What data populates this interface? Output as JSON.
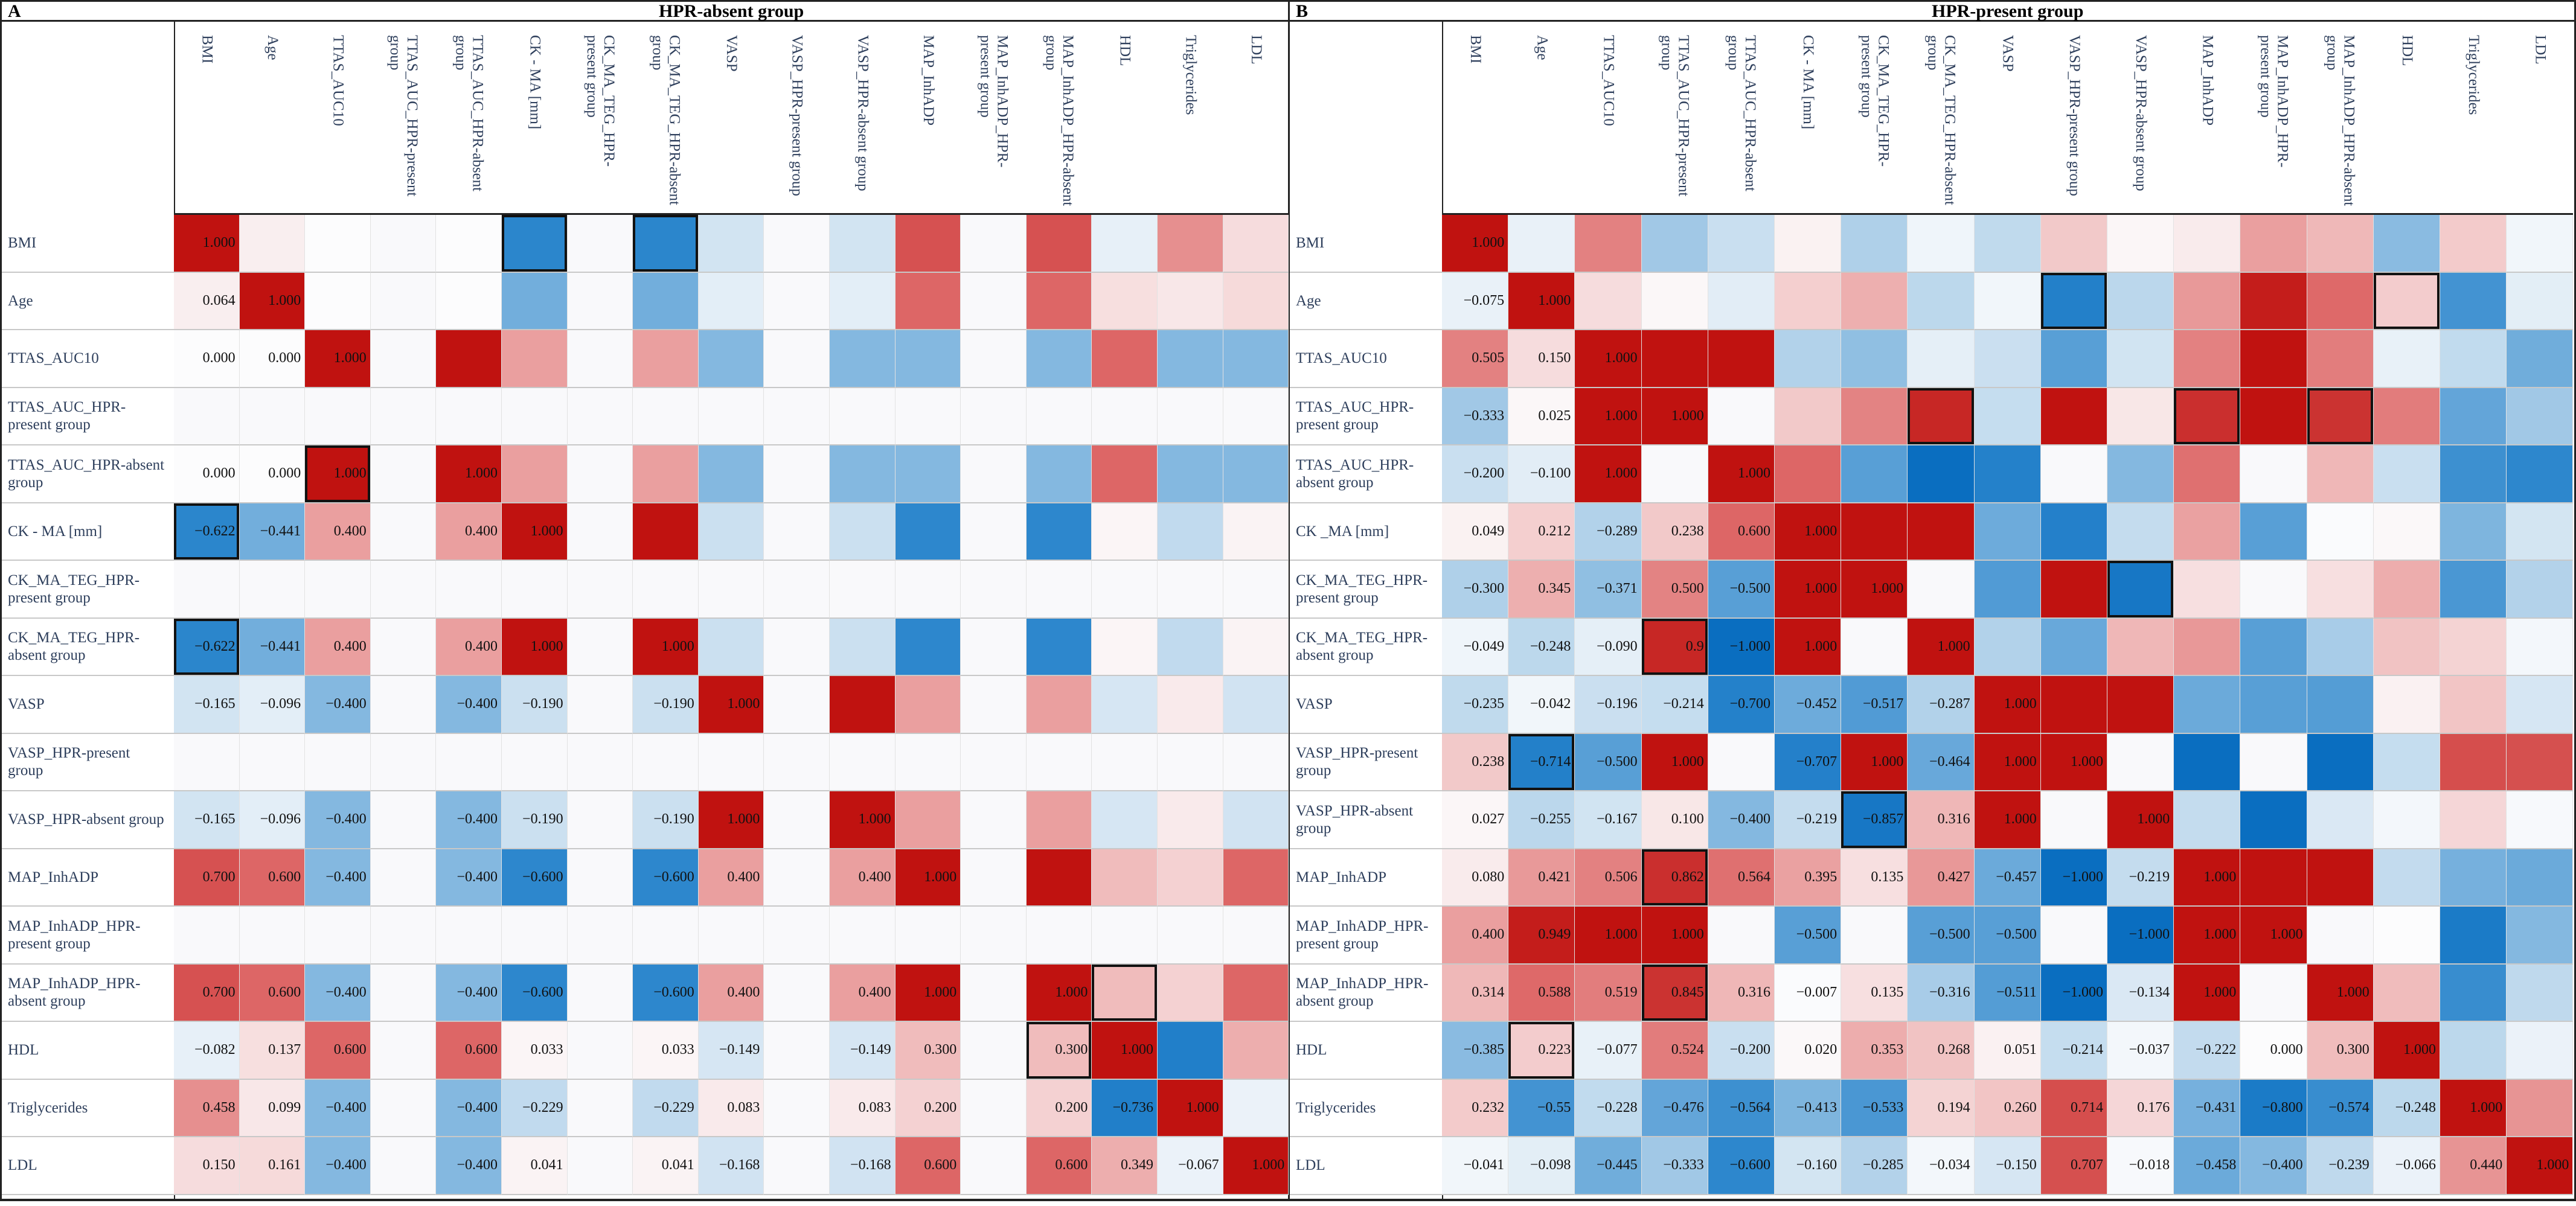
{
  "chart_data": [
    {
      "type": "heatmap",
      "panel": "A",
      "title": "HPR-absent group",
      "value_range": [
        -1,
        1
      ],
      "colormap": {
        "negative": "#0a6ec0",
        "zero": "#ffffff",
        "positive": "#c0120f",
        "missing": "#f9f9fb"
      },
      "col_labels": [
        "BMI",
        "Age",
        "TTAS_AUC10",
        "TTAS_AUC_HPR-present group",
        "TTAS_AUC_HPR-absent group",
        "CK - MA [mm]",
        "CK_MA_TEG_HPR-present group",
        "CK_MA_TEG_HPR-absent group",
        "VASP",
        "VASP_HPR-present group",
        "VASP_HPR-absent group",
        "MAP_InhADP",
        "MAP_InhADP_HPR-present group",
        "MAP_InhADP_HPR-absent group",
        "HDL",
        "Triglycerides",
        "LDL"
      ],
      "row_labels": [
        "BMI",
        "Age",
        "TTAS_AUC10",
        "TTAS_AUC_HPR-present group",
        "TTAS_AUC_HPR-absent group",
        "CK - MA [mm]",
        "CK_MA_TEG_HPR-present group",
        "CK_MA_TEG_HPR-absent group",
        "VASP",
        "VASP_HPR-present group",
        "VASP_HPR-absent group",
        "MAP_InhADP",
        "MAP_InhADP_HPR-present group",
        "MAP_InhADP_HPR-absent group",
        "HDL",
        "Triglycerides",
        "LDL"
      ],
      "values": [
        [
          "1.000"
        ],
        [
          "0.064",
          "1.000"
        ],
        [
          "0.000",
          "0.000",
          "1.000"
        ],
        [
          null,
          null,
          null,
          null
        ],
        [
          "0.000",
          "0.000",
          "1.000",
          null,
          "1.000"
        ],
        [
          "-0.622",
          "-0.441",
          "0.400",
          null,
          "0.400",
          "1.000"
        ],
        [
          null,
          null,
          null,
          null,
          null,
          null,
          null
        ],
        [
          "-0.622",
          "-0.441",
          "0.400",
          null,
          "0.400",
          "1.000",
          null,
          "1.000"
        ],
        [
          "-0.165",
          "-0.096",
          "-0.400",
          null,
          "-0.400",
          "-0.190",
          null,
          "-0.190",
          "1.000"
        ],
        [
          null,
          null,
          null,
          null,
          null,
          null,
          null,
          null,
          null,
          null
        ],
        [
          "-0.165",
          "-0.096",
          "-0.400",
          null,
          "-0.400",
          "-0.190",
          null,
          "-0.190",
          "1.000",
          null,
          "1.000"
        ],
        [
          "0.700",
          "0.600",
          "-0.400",
          null,
          "-0.400",
          "-0.600",
          null,
          "-0.600",
          "0.400",
          null,
          "0.400",
          "1.000"
        ],
        [
          null,
          null,
          null,
          null,
          null,
          null,
          null,
          null,
          null,
          null,
          null,
          null,
          null
        ],
        [
          "0.700",
          "0.600",
          "-0.400",
          null,
          "-0.400",
          "-0.600",
          null,
          "-0.600",
          "0.400",
          null,
          "0.400",
          "1.000",
          null,
          "1.000"
        ],
        [
          "-0.082",
          "0.137",
          "0.600",
          null,
          "0.600",
          "0.033",
          null,
          "0.033",
          "-0.149",
          null,
          "-0.149",
          "0.300",
          null,
          "0.300",
          "1.000"
        ],
        [
          "0.458",
          "0.099",
          "-0.400",
          null,
          "-0.400",
          "-0.229",
          null,
          "-0.229",
          "0.083",
          null,
          "0.083",
          "0.200",
          null,
          "0.200",
          "-0.736",
          "1.000"
        ],
        [
          "0.150",
          "0.161",
          "-0.400",
          null,
          "-0.400",
          "0.041",
          null,
          "0.041",
          "-0.168",
          null,
          "-0.168",
          "0.600",
          null,
          "0.600",
          "0.349",
          "-0.067",
          "1.000"
        ]
      ],
      "highlighted_cells": [
        [
          0,
          5
        ],
        [
          0,
          7
        ],
        [
          5,
          0
        ],
        [
          7,
          0
        ],
        [
          4,
          2
        ],
        [
          13,
          14
        ],
        [
          14,
          13
        ]
      ]
    },
    {
      "type": "heatmap",
      "panel": "B",
      "title": "HPR-present group",
      "value_range": [
        -1,
        1
      ],
      "colormap": {
        "negative": "#0a6ec0",
        "zero": "#ffffff",
        "positive": "#c0120f",
        "missing": "#f9f9fb"
      },
      "col_labels": [
        "BMI",
        "Age",
        "TTAS_AUC10",
        "TTAS_AUC_HPR-present group",
        "TTAS_AUC_HPR-absent group",
        "CK - MA [mm]",
        "CK_MA_TEG_HPR-present group",
        "CK_MA_TEG_HPR-absent group",
        "VASP",
        "VASP_HPR-present group",
        "VASP_HPR-absent group",
        "MAP_InhADP",
        "MAP_InhADP_HPR-present group",
        "MAP_InhADP_HPR-absent group",
        "HDL",
        "Triglycerides",
        "LDL"
      ],
      "row_labels": [
        "BMI",
        "Age",
        "TTAS_AUC10",
        "TTAS_AUC_HPR-present group",
        "TTAS_AUC_HPR-absent group",
        "CK _MA [mm]",
        "CK_MA_TEG_HPR-present group",
        "CK_MA_TEG_HPR-absent group",
        "VASP",
        "VASP_HPR-present group",
        "VASP_HPR-absent group",
        "MAP_InhADP",
        "MAP_InhADP_HPR-present group",
        "MAP_InhADP_HPR-absent group",
        "HDL",
        "Triglycerides",
        "LDL"
      ],
      "values": [
        [
          "1.000"
        ],
        [
          "-0.075",
          "1.000"
        ],
        [
          "0.505",
          "0.150",
          "1.000"
        ],
        [
          "-0.333",
          "0.025",
          "1.000",
          "1.000"
        ],
        [
          "-0.200",
          "-0.100",
          "1.000",
          null,
          "1.000"
        ],
        [
          "0.049",
          "0.212",
          "-0.289",
          "0.238",
          "0.600",
          "1.000"
        ],
        [
          "-0.300",
          "0.345",
          "-0.371",
          "0.500",
          "-0.500",
          "1.000",
          "1.000"
        ],
        [
          "-0.049",
          "-0.248",
          "-0.090",
          "0.9",
          "-1.000",
          "1.000",
          null,
          "1.000"
        ],
        [
          "-0.235",
          "-0.042",
          "-0.196",
          "-0.214",
          "-0.700",
          "-0.452",
          "-0.517",
          "-0.287",
          "1.000"
        ],
        [
          "0.238",
          "-0.714",
          "-0.500",
          "1.000",
          null,
          "-0.707",
          "1.000",
          "-0.464",
          "1.000",
          "1.000"
        ],
        [
          "0.027",
          "-0.255",
          "-0.167",
          "0.100",
          "-0.400",
          "-0.219",
          "-0.857",
          "0.316",
          "1.000",
          null,
          "1.000"
        ],
        [
          "0.080",
          "0.421",
          "0.506",
          "0.862",
          "0.564",
          "0.395",
          "0.135",
          "0.427",
          "-0.457",
          "-1.000",
          "-0.219",
          "1.000"
        ],
        [
          "0.400",
          "0.949",
          "1.000",
          "1.000",
          null,
          "-0.500",
          null,
          "-0.500",
          "-0.500",
          null,
          "-1.000",
          "1.000",
          "1.000"
        ],
        [
          "0.314",
          "0.588",
          "0.519",
          "0.845",
          "0.316",
          "-0.007",
          "0.135",
          "-0.316",
          "-0.511",
          "-1.000",
          "-0.134",
          "1.000",
          null,
          "1.000"
        ],
        [
          "-0.385",
          "0.223",
          "-0.077",
          "0.524",
          "-0.200",
          "0.020",
          "0.353",
          "0.268",
          "0.051",
          "-0.214",
          "-0.037",
          "-0.222",
          "0.000",
          "0.300",
          "1.000"
        ],
        [
          "0.232",
          "-0.55",
          "-0.228",
          "-0.476",
          "-0.564",
          "-0.413",
          "-0.533",
          "0.194",
          "0.260",
          "0.714",
          "0.176",
          "-0.431",
          "-0.800",
          "-0.574",
          "-0.248",
          "1.000"
        ],
        [
          "-0.041",
          "-0.098",
          "-0.445",
          "-0.333",
          "-0.600",
          "-0.160",
          "-0.285",
          "-0.034",
          "-0.150",
          "0.707",
          "-0.018",
          "-0.458",
          "-0.400",
          "-0.239",
          "-0.066",
          "0.440",
          "1.000"
        ]
      ],
      "highlighted_cells": [
        [
          1,
          9
        ],
        [
          9,
          1
        ],
        [
          1,
          14
        ],
        [
          14,
          1
        ],
        [
          3,
          7
        ],
        [
          7,
          3
        ],
        [
          3,
          11
        ],
        [
          11,
          3
        ],
        [
          3,
          13
        ],
        [
          13,
          3
        ],
        [
          6,
          10
        ],
        [
          10,
          6
        ]
      ]
    }
  ]
}
